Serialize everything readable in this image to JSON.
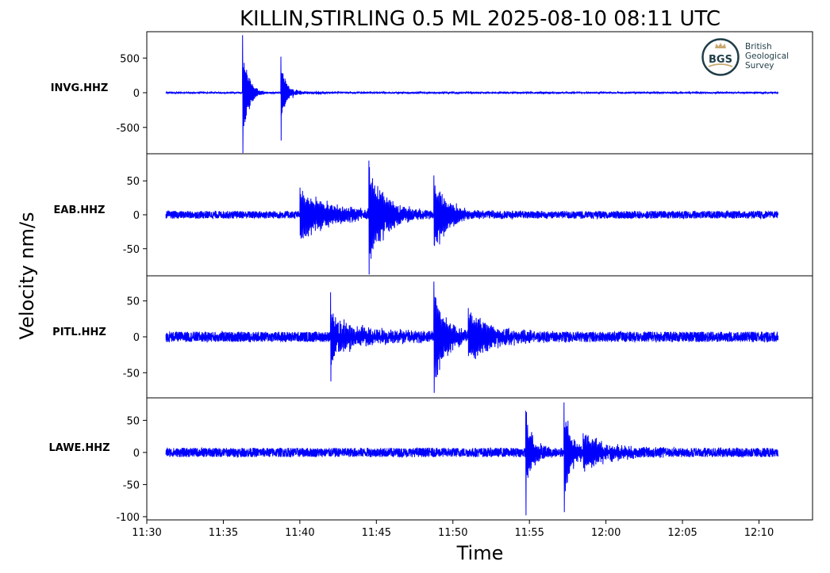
{
  "chart_data": {
    "type": "line",
    "title": "KILLIN,STIRLING 0.5 ML   2025-08-10 08:11 UTC",
    "xlabel": "Time",
    "ylabel": "Velocity nm/s",
    "line_color": "#0000ff",
    "x_range": [
      "11:30:00",
      "12:13:30"
    ],
    "x_ticks": [
      "11:30",
      "11:35",
      "11:40",
      "11:45",
      "11:50",
      "11:55",
      "12:00",
      "12:05",
      "12:10"
    ],
    "trace_span": [
      "11:31:15",
      "12:11:15"
    ],
    "legend": "none",
    "grid": false,
    "logo": {
      "abbr": "BGS",
      "lines": [
        "British",
        "Geological",
        "Survey"
      ]
    },
    "series": [
      {
        "name": "INVG.HHZ",
        "ylim": [
          -880,
          880
        ],
        "yticks": [
          500,
          0,
          -500
        ],
        "noise": 6,
        "events": [
          {
            "t": "11:36:15",
            "amp": 830,
            "min": -870,
            "decay": 22,
            "period": 2.5
          },
          {
            "t": "11:38:45",
            "amp": 520,
            "min": -690,
            "decay": 20,
            "period": 2.5
          },
          {
            "t": "11:39:30",
            "amp": 40,
            "decay": 60,
            "period": 3
          }
        ]
      },
      {
        "name": "EAB.HHZ",
        "ylim": [
          -90,
          90
        ],
        "yticks": [
          50,
          0,
          -50
        ],
        "noise": 3.5,
        "events": [
          {
            "t": "11:40:00",
            "amp": 40,
            "decay": 120,
            "period": 4
          },
          {
            "t": "11:44:30",
            "amp": 80,
            "min": -88,
            "decay": 70,
            "period": 4
          },
          {
            "t": "11:48:45",
            "amp": 58,
            "min": -45,
            "decay": 60,
            "period": 4
          }
        ]
      },
      {
        "name": "PITL.HHZ",
        "ylim": [
          -85,
          85
        ],
        "yticks": [
          50,
          0,
          -50
        ],
        "noise": 4.5,
        "events": [
          {
            "t": "11:42:00",
            "amp": 62,
            "min": -62,
            "decay": 20,
            "period": 3
          },
          {
            "t": "11:42:30",
            "amp": 20,
            "decay": 150,
            "period": 4
          },
          {
            "t": "11:48:45",
            "amp": 77,
            "min": -78,
            "decay": 45,
            "period": 4
          },
          {
            "t": "11:51:00",
            "amp": 40,
            "decay": 100,
            "period": 4
          }
        ]
      },
      {
        "name": "LAWE.HHZ",
        "ylim": [
          -105,
          85
        ],
        "yticks": [
          50,
          0,
          -50,
          -100
        ],
        "noise": 4.5,
        "events": [
          {
            "t": "11:54:45",
            "amp": 65,
            "min": -98,
            "decay": 30,
            "period": 4
          },
          {
            "t": "11:57:15",
            "amp": 78,
            "min": -93,
            "decay": 30,
            "period": 4
          },
          {
            "t": "11:58:30",
            "amp": 30,
            "decay": 100,
            "period": 4
          }
        ]
      }
    ]
  }
}
